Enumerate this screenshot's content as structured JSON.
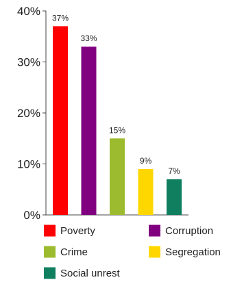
{
  "chart_data": {
    "type": "bar",
    "categories": [
      "Poverty",
      "Corruption",
      "Crime",
      "Segregation",
      "Social unrest"
    ],
    "values": [
      37,
      33,
      15,
      9,
      7
    ],
    "data_labels": [
      "37%",
      "33%",
      "15%",
      "9%",
      "7%"
    ],
    "colors": [
      "#ff0000",
      "#800080",
      "#9cbb2e",
      "#ffd700",
      "#0f7f5f"
    ],
    "ylim": [
      0,
      40
    ],
    "yticks": [
      0,
      10,
      20,
      30,
      40
    ],
    "ytick_labels": [
      "0%",
      "10%",
      "20%",
      "30%",
      "40%"
    ],
    "grid": false,
    "legend": {
      "placement": "bottom",
      "entries": [
        "Poverty",
        "Corruption",
        "Crime",
        "Segregation",
        "Social unrest"
      ]
    },
    "title": "",
    "xlabel": "",
    "ylabel": ""
  }
}
